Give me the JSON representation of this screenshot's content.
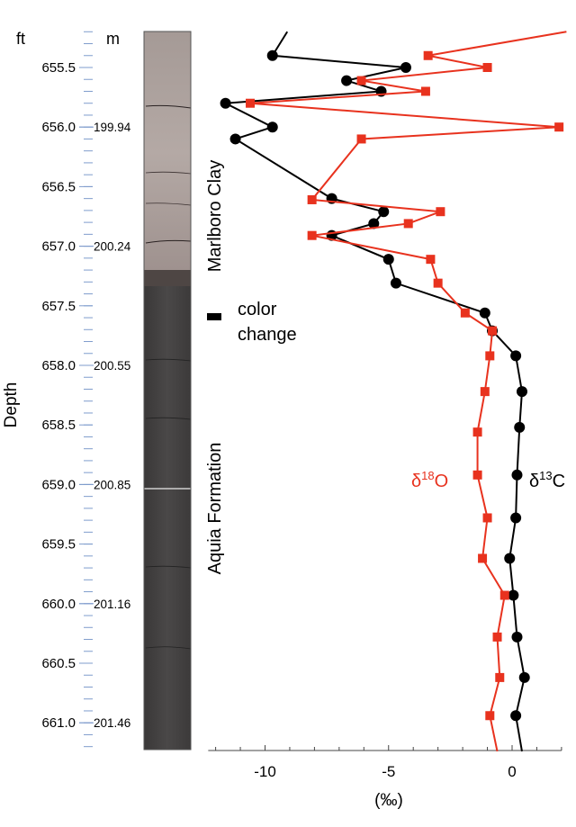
{
  "chart_data": {
    "type": "line",
    "title": "",
    "xlabel": "(‰)",
    "ylabel": "Depth",
    "xlim": [
      -12.3,
      2.0
    ],
    "ylim": [
      655.2,
      661.25
    ],
    "x_ticks": [
      -10,
      -5,
      0
    ],
    "x_tick_labels": [
      "-10",
      "-5",
      "0"
    ],
    "depth_units": {
      "ft_label": "ft",
      "m_label": "m"
    },
    "ft_ticks": [
      "655.5",
      "656.0",
      "656.5",
      "657.0",
      "657.5",
      "658.0",
      "658.5",
      "659.0",
      "659.5",
      "660.0",
      "660.5",
      "661.0"
    ],
    "m_ticks": [
      {
        "ft": 656.0,
        "label": "199.94"
      },
      {
        "ft": 657.0,
        "label": "200.24"
      },
      {
        "ft": 658.0,
        "label": "200.55"
      },
      {
        "ft": 659.0,
        "label": "200.85"
      },
      {
        "ft": 660.0,
        "label": "201.16"
      },
      {
        "ft": 661.0,
        "label": "201.46"
      }
    ],
    "annotations": {
      "upper_unit": "Marlboro Clay",
      "lower_unit": "Aquia Formation",
      "color_change_line1": "color",
      "color_change_line2": "change",
      "color_change_depth": 657.7
    },
    "series": [
      {
        "name": "δ13C",
        "label_main": "δ",
        "label_sup": "13",
        "label_tail": "C",
        "color": "#000000",
        "marker": "circle",
        "line_start": {
          "value": -9.1,
          "depth": 655.2
        },
        "line_end": {
          "value": 0.4,
          "depth": 661.24
        },
        "points": [
          [
            -9.7,
            655.4
          ],
          [
            -4.3,
            655.5
          ],
          [
            -6.7,
            655.61
          ],
          [
            -5.3,
            655.7
          ],
          [
            -11.6,
            655.8
          ],
          [
            -9.7,
            656.0
          ],
          [
            -11.2,
            656.1
          ],
          [
            -7.3,
            656.6
          ],
          [
            -5.2,
            656.71
          ],
          [
            -5.6,
            656.81
          ],
          [
            -7.3,
            656.91
          ],
          [
            -5.0,
            657.11
          ],
          [
            -4.7,
            657.31
          ],
          [
            -1.1,
            657.56
          ],
          [
            -0.8,
            657.71
          ],
          [
            0.15,
            657.92
          ],
          [
            0.4,
            658.22
          ],
          [
            0.3,
            658.52
          ],
          [
            0.2,
            658.92
          ],
          [
            0.15,
            659.28
          ],
          [
            -0.1,
            659.62
          ],
          [
            0.05,
            659.93
          ],
          [
            0.2,
            660.28
          ],
          [
            0.5,
            660.62
          ],
          [
            0.15,
            660.94
          ]
        ]
      },
      {
        "name": "δ18O",
        "label_main": "δ",
        "label_sup": "18",
        "label_tail": "O",
        "color": "#e8321e",
        "marker": "square",
        "line_start": {
          "value": 2.2,
          "depth": 655.2
        },
        "line_end": {
          "value": -0.6,
          "depth": 661.24
        },
        "points": [
          [
            -3.4,
            655.4
          ],
          [
            -1.0,
            655.5
          ],
          [
            -6.1,
            655.61
          ],
          [
            -3.5,
            655.7
          ],
          [
            -10.6,
            655.8
          ],
          [
            1.9,
            656.0
          ],
          [
            -6.1,
            656.1
          ],
          [
            -8.1,
            656.61
          ],
          [
            -2.9,
            656.71
          ],
          [
            -4.2,
            656.81
          ],
          [
            -8.1,
            656.91
          ],
          [
            -3.3,
            657.11
          ],
          [
            -3.0,
            657.31
          ],
          [
            -1.9,
            657.56
          ],
          [
            -0.8,
            657.71
          ],
          [
            -0.9,
            657.92
          ],
          [
            -1.1,
            658.22
          ],
          [
            -1.4,
            658.56
          ],
          [
            -1.4,
            658.92
          ],
          [
            -1.0,
            659.28
          ],
          [
            -1.2,
            659.62
          ],
          [
            -0.3,
            659.93
          ],
          [
            -0.6,
            660.28
          ],
          [
            -0.5,
            660.62
          ],
          [
            -0.9,
            660.94
          ]
        ]
      }
    ]
  }
}
